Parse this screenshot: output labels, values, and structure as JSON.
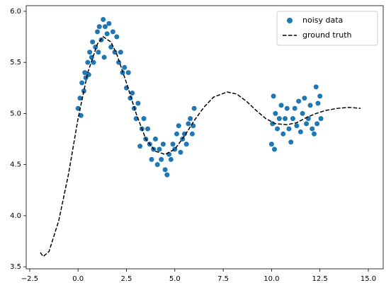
{
  "chart_data": {
    "type": "scatter",
    "xlim": [
      -2.68,
      15.77
    ],
    "ylim": [
      3.48,
      6.055
    ],
    "xticks": [
      {
        "value": -2.5,
        "label": "−2.5"
      },
      {
        "value": 0,
        "label": "0.0"
      },
      2.5,
      {
        "value": 5,
        "label": "5.0"
      },
      7.5,
      {
        "value": 10,
        "label": "10.0"
      },
      12.5,
      {
        "value": 15,
        "label": "15.0"
      }
    ],
    "yticks": [
      3.5,
      {
        "value": 4,
        "label": "4.0"
      },
      4.5,
      {
        "value": 5,
        "label": "5.0"
      },
      5.5,
      {
        "value": 6,
        "label": "6.0"
      }
    ],
    "legend": "upper right",
    "series": [
      {
        "name": "noisy data",
        "type": "scatter",
        "color": "#1f77b4",
        "x": [
          0.0,
          0.1,
          0.15,
          0.2,
          0.3,
          0.35,
          0.4,
          0.5,
          0.55,
          0.6,
          0.7,
          0.75,
          0.8,
          0.9,
          1.0,
          1.05,
          1.1,
          1.2,
          1.3,
          1.35,
          1.4,
          1.5,
          1.6,
          1.7,
          1.8,
          1.9,
          2.0,
          2.1,
          2.2,
          2.3,
          2.4,
          2.5,
          2.6,
          2.7,
          2.8,
          2.9,
          3.0,
          3.1,
          3.2,
          3.3,
          3.4,
          3.5,
          3.6,
          3.7,
          3.8,
          3.9,
          4.0,
          4.1,
          4.2,
          4.3,
          4.4,
          4.5,
          4.6,
          4.7,
          4.8,
          4.9,
          5.0,
          5.1,
          5.2,
          5.3,
          5.4,
          5.5,
          5.6,
          5.7,
          5.8,
          5.9,
          6.0,
          5.95,
          10.0,
          10.05,
          10.1,
          10.15,
          10.2,
          10.3,
          10.4,
          10.5,
          10.6,
          10.7,
          10.8,
          10.9,
          11.0,
          11.1,
          11.2,
          11.3,
          11.4,
          11.5,
          11.6,
          11.7,
          11.8,
          11.9,
          12.0,
          12.1,
          12.2,
          12.3,
          12.35,
          12.4,
          12.5,
          12.55
        ],
        "values": [
          5.05,
          5.15,
          4.98,
          5.3,
          5.22,
          5.4,
          5.35,
          5.5,
          5.38,
          5.6,
          5.55,
          5.7,
          5.5,
          5.65,
          5.8,
          5.6,
          5.85,
          5.72,
          5.92,
          5.55,
          5.85,
          5.78,
          5.88,
          5.65,
          5.8,
          5.6,
          5.75,
          5.5,
          5.6,
          5.4,
          5.45,
          5.25,
          5.4,
          5.15,
          5.2,
          5.05,
          4.95,
          5.1,
          4.68,
          4.85,
          4.95,
          4.75,
          4.85,
          4.7,
          4.55,
          4.65,
          4.75,
          4.5,
          4.65,
          4.55,
          4.7,
          4.45,
          4.4,
          4.6,
          4.55,
          4.7,
          4.65,
          4.8,
          4.88,
          4.62,
          4.75,
          4.8,
          4.7,
          4.9,
          4.95,
          4.8,
          5.05,
          4.88,
          4.7,
          4.9,
          5.17,
          4.65,
          5.0,
          4.85,
          4.95,
          5.08,
          4.8,
          4.95,
          5.05,
          4.85,
          4.72,
          4.95,
          5.05,
          4.88,
          5.12,
          4.82,
          5.0,
          5.15,
          4.9,
          4.95,
          5.08,
          4.85,
          4.8,
          5.26,
          4.9,
          5.1,
          5.17,
          4.95
        ]
      },
      {
        "name": "ground truth",
        "type": "line",
        "color": "#000000",
        "linestyle": "dashed",
        "x": [
          -1.95,
          -1.8,
          -1.5,
          -1.0,
          -0.5,
          0,
          0.5,
          1.0,
          1.3,
          1.7,
          2.0,
          2.5,
          3.0,
          3.5,
          4.0,
          4.5,
          5.0,
          5.5,
          6.0,
          6.5,
          7.0,
          7.7,
          8.2,
          8.7,
          9.2,
          9.7,
          10.2,
          10.8,
          11.3,
          11.8,
          12.3,
          12.8,
          13.4,
          14.0,
          14.6
        ],
        "values": [
          3.64,
          3.6,
          3.65,
          3.95,
          4.4,
          4.95,
          5.4,
          5.68,
          5.75,
          5.7,
          5.58,
          5.3,
          5.0,
          4.75,
          4.63,
          4.6,
          4.65,
          4.78,
          4.93,
          5.06,
          5.16,
          5.21,
          5.19,
          5.12,
          5.03,
          4.95,
          4.9,
          4.89,
          4.91,
          4.96,
          5.0,
          5.03,
          5.05,
          5.06,
          5.05
        ]
      }
    ]
  }
}
